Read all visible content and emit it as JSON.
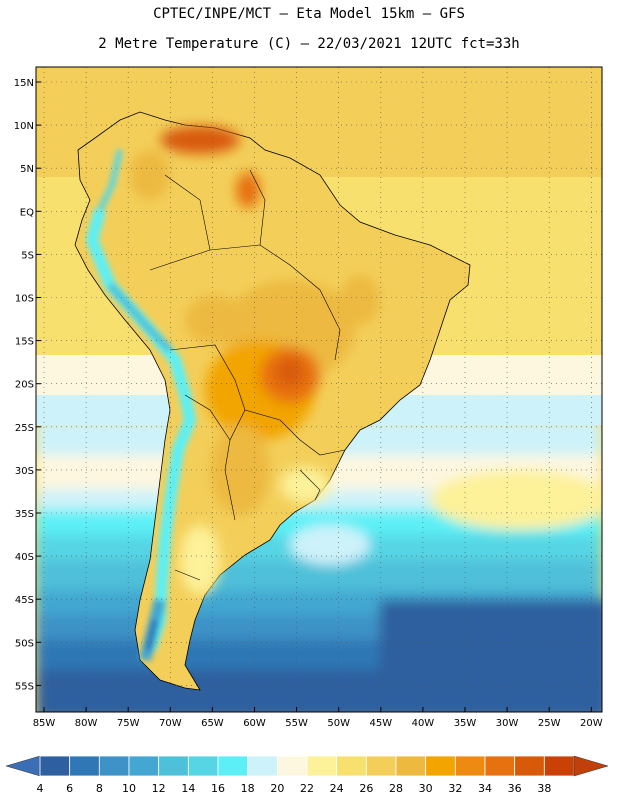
{
  "header": {
    "line1": "CPTEC/INPE/MCT –  Eta Model 15km – GFS",
    "line2": "2 Metre Temperature (C) – 22/03/2021 12UTC fct=33h"
  },
  "map": {
    "lat_labels": [
      "15N",
      "10N",
      "5N",
      "EQ",
      "5S",
      "10S",
      "15S",
      "20S",
      "25S",
      "30S",
      "35S",
      "40S",
      "45S",
      "50S",
      "55S"
    ],
    "lon_labels": [
      "85W",
      "80W",
      "75W",
      "70W",
      "65W",
      "60W",
      "55W",
      "50W",
      "45W",
      "40W",
      "35W",
      "30W",
      "25W",
      "20W"
    ]
  },
  "colorbar": {
    "labels": [
      "4",
      "6",
      "8",
      "10",
      "12",
      "14",
      "16",
      "18",
      "20",
      "22",
      "24",
      "26",
      "28",
      "30",
      "32",
      "34",
      "36",
      "38"
    ],
    "colors": [
      "#2e5f9e",
      "#2f77b5",
      "#3e92c6",
      "#43a7d1",
      "#4fc0d9",
      "#56d6e4",
      "#5cf0f6",
      "#cdf2fa",
      "#fdf7e0",
      "#fdf19a",
      "#f8e06f",
      "#f3cf5a",
      "#edb93f",
      "#f2a400",
      "#ee8a12",
      "#e7700f",
      "#d85a09",
      "#c94107"
    ],
    "under_color": "#3a6fb6",
    "over_color": "#c1400a"
  }
}
